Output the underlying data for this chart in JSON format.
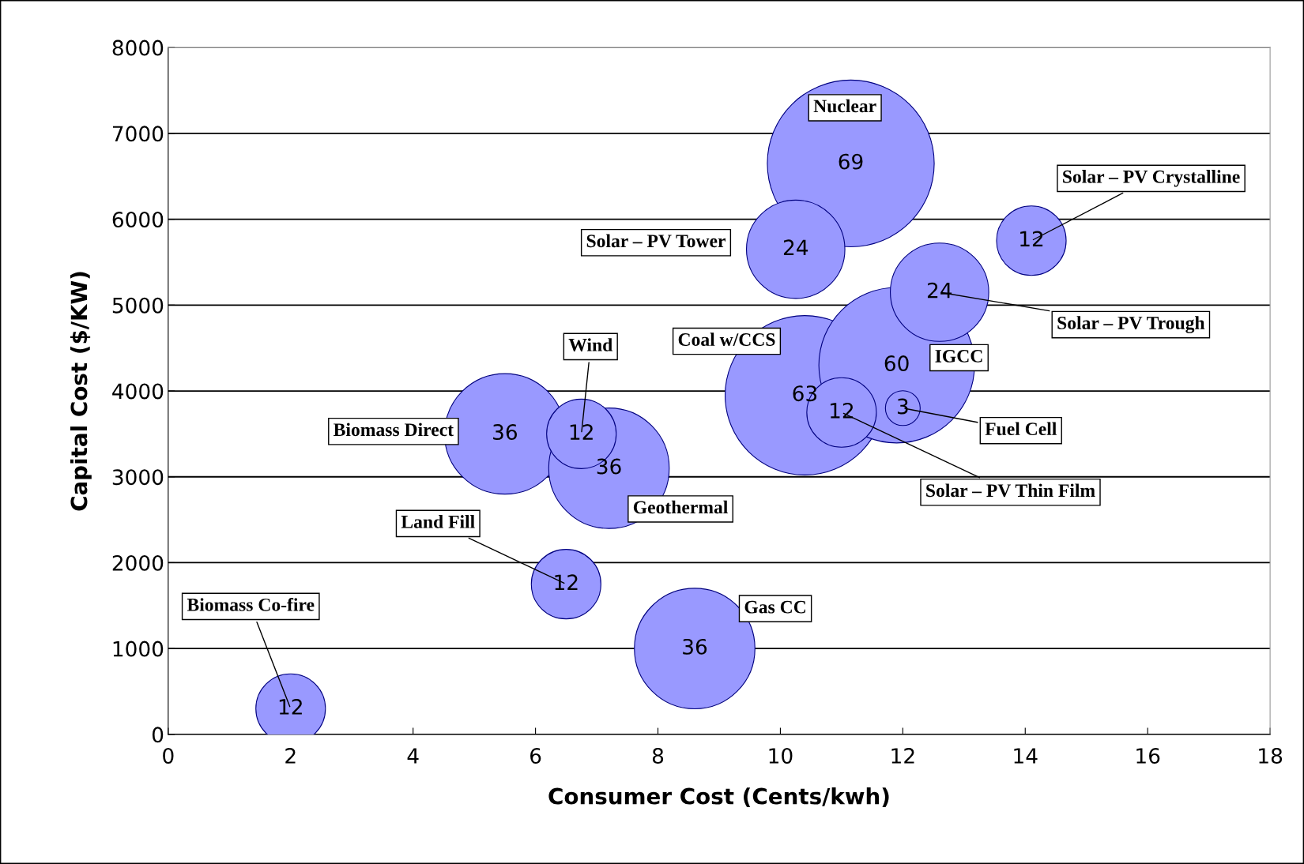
{
  "chart_data": {
    "type": "bubble",
    "xlabel": "Consumer Cost (Cents/kwh)",
    "ylabel": "Capital Cost ($/KW)",
    "xlim": [
      0,
      18
    ],
    "xticks": [
      0,
      2,
      4,
      6,
      8,
      10,
      12,
      14,
      16,
      18
    ],
    "ylim": [
      0,
      8000
    ],
    "yticks": [
      0,
      1000,
      2000,
      3000,
      4000,
      5000,
      6000,
      7000,
      8000
    ],
    "grid": "y",
    "legend": false,
    "series": [
      {
        "name": "Biomass Co-fire",
        "color": "#9999ff",
        "x": [
          2
        ],
        "values": [
          300
        ],
        "sizes": [
          12
        ],
        "value_labels": [
          "12"
        ]
      },
      {
        "name": "Land Fill",
        "color": "#9999ff",
        "x": [
          6.5
        ],
        "values": [
          1750
        ],
        "sizes": [
          12
        ],
        "value_labels": [
          "12"
        ]
      },
      {
        "name": "Gas CC",
        "color": "#9999ff",
        "x": [
          8.6
        ],
        "values": [
          1000
        ],
        "sizes": [
          36
        ],
        "value_labels": [
          "36"
        ]
      },
      {
        "name": "Biomass Direct",
        "color": "#9999ff",
        "x": [
          5.5
        ],
        "values": [
          3500
        ],
        "sizes": [
          36
        ],
        "value_labels": [
          "36"
        ]
      },
      {
        "name": "Wind",
        "color": "#9999ff",
        "x": [
          6.75
        ],
        "values": [
          3500
        ],
        "sizes": [
          12
        ],
        "value_labels": [
          "12"
        ]
      },
      {
        "name": "Geothermal",
        "color": "#9999ff",
        "x": [
          7.2
        ],
        "values": [
          3100
        ],
        "sizes": [
          36
        ],
        "value_labels": [
          "36"
        ]
      },
      {
        "name": "Coal w/CCS",
        "color": "#9999ff",
        "x": [
          10.4
        ],
        "values": [
          3950
        ],
        "sizes": [
          63
        ],
        "value_labels": [
          "63"
        ]
      },
      {
        "name": "Solar – PV Thin Film",
        "color": "#9999ff",
        "x": [
          11
        ],
        "values": [
          3750
        ],
        "sizes": [
          12
        ],
        "value_labels": [
          "12"
        ]
      },
      {
        "name": "IGCC",
        "color": "#9999ff",
        "x": [
          11.9
        ],
        "values": [
          4300
        ],
        "sizes": [
          60
        ],
        "value_labels": [
          "60"
        ]
      },
      {
        "name": "Fuel Cell",
        "color": "#9999ff",
        "x": [
          12
        ],
        "values": [
          3800
        ],
        "sizes": [
          3
        ],
        "value_labels": [
          "3"
        ]
      },
      {
        "name": "Solar – PV Trough",
        "color": "#9999ff",
        "x": [
          12.6
        ],
        "values": [
          5150
        ],
        "sizes": [
          24
        ],
        "value_labels": [
          "24"
        ]
      },
      {
        "name": "Solar – PV Tower",
        "color": "#9999ff",
        "x": [
          10.25
        ],
        "values": [
          5650
        ],
        "sizes": [
          24
        ],
        "value_labels": [
          "24"
        ]
      },
      {
        "name": "Nuclear",
        "color": "#9999ff",
        "x": [
          11.15
        ],
        "values": [
          6650
        ],
        "sizes": [
          69
        ],
        "value_labels": [
          "69"
        ]
      },
      {
        "name": "Solar – PV Crystalline",
        "color": "#9999ff",
        "x": [
          14.1
        ],
        "values": [
          5750
        ],
        "sizes": [
          12
        ],
        "value_labels": [
          "12"
        ]
      }
    ]
  }
}
